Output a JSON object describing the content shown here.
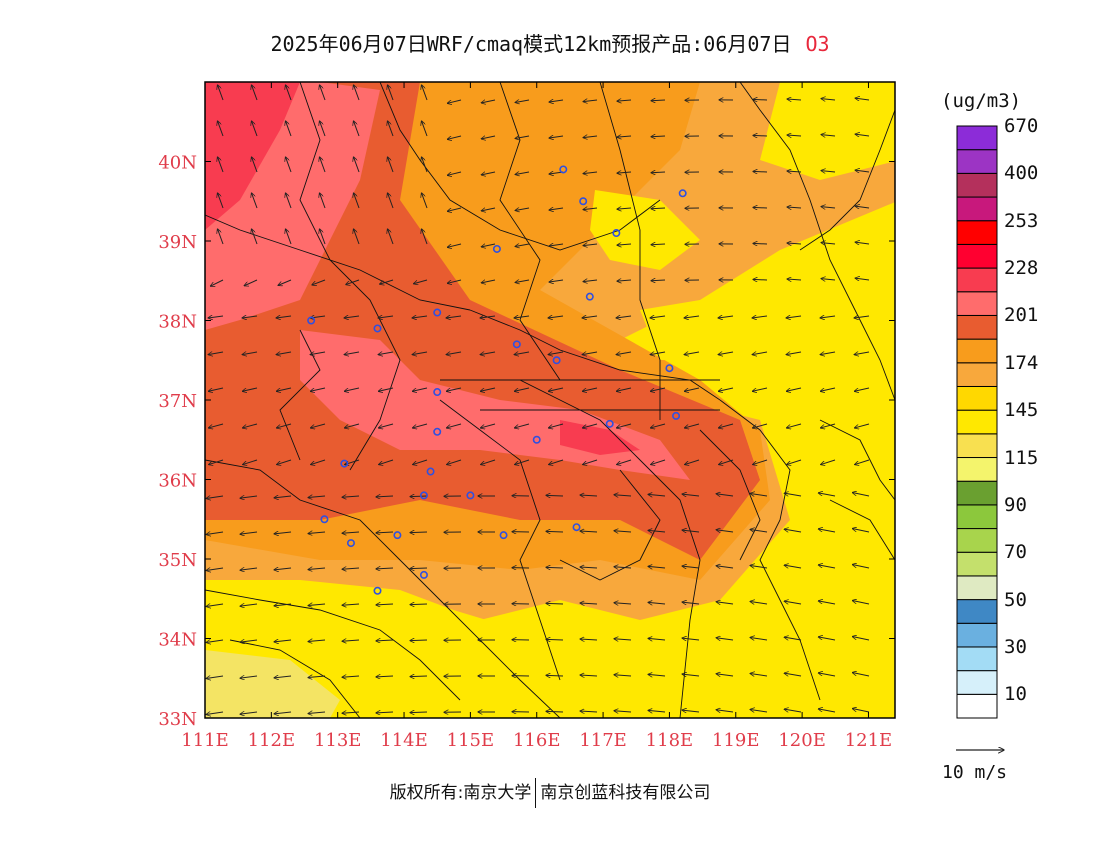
{
  "title": {
    "text": "2025年06月07日WRF/cmaq模式12km预报产品:06月07日",
    "species": "O3"
  },
  "map": {
    "lon_ticks": [
      "111E",
      "112E",
      "113E",
      "114E",
      "115E",
      "116E",
      "117E",
      "118E",
      "119E",
      "120E",
      "121E"
    ],
    "lat_ticks": [
      "33N",
      "34N",
      "35N",
      "36N",
      "37N",
      "38N",
      "39N",
      "40N"
    ],
    "lon_range": [
      111,
      121.4
    ],
    "lat_range": [
      33,
      41.0
    ],
    "axis_label_color": "#e03c4a",
    "city_marker_color": "#3050e0",
    "cities": [
      [
        116.4,
        39.9
      ],
      [
        116.7,
        39.5
      ],
      [
        118.2,
        39.6
      ],
      [
        117.2,
        39.1
      ],
      [
        115.4,
        38.9
      ],
      [
        116.8,
        38.3
      ],
      [
        112.6,
        38.0
      ],
      [
        113.6,
        37.9
      ],
      [
        114.5,
        38.1
      ],
      [
        115.7,
        37.7
      ],
      [
        116.3,
        37.5
      ],
      [
        118.0,
        37.4
      ],
      [
        114.5,
        37.1
      ],
      [
        114.5,
        36.6
      ],
      [
        116.0,
        36.5
      ],
      [
        117.1,
        36.7
      ],
      [
        118.1,
        36.8
      ],
      [
        113.1,
        36.2
      ],
      [
        114.4,
        36.1
      ],
      [
        114.3,
        35.8
      ],
      [
        115.0,
        35.8
      ],
      [
        112.8,
        35.5
      ],
      [
        113.2,
        35.2
      ],
      [
        113.9,
        35.3
      ],
      [
        115.5,
        35.3
      ],
      [
        116.6,
        35.4
      ],
      [
        114.3,
        34.8
      ],
      [
        113.6,
        34.6
      ]
    ]
  },
  "legend": {
    "units": "(ug/m3)",
    "colors": [
      "#ffffff",
      "#d6f0fa",
      "#a3dcf5",
      "#6ab0e0",
      "#3f88c5",
      "#dfeac2",
      "#c4e06c",
      "#a8d44c",
      "#8cc83c",
      "#6aa030",
      "#f4f46c",
      "#f8e050",
      "#ffe800",
      "#ffd800",
      "#f8a83c",
      "#f89c1c",
      "#e85c30",
      "#ff6c6c",
      "#f83c50",
      "#ff0030",
      "#ff0000",
      "#c8187c",
      "#b4305c",
      "#9c34c4",
      "#8c2cd8"
    ],
    "labels": [
      "10",
      "30",
      "50",
      "70",
      "90",
      "115",
      "145",
      "174",
      "201",
      "228",
      "253",
      "400",
      "670"
    ]
  },
  "vector_key": {
    "label": "10 m/s"
  },
  "copyright": {
    "left": "版权所有:南京大学",
    "right": "南京创蓝科技有限公司"
  }
}
